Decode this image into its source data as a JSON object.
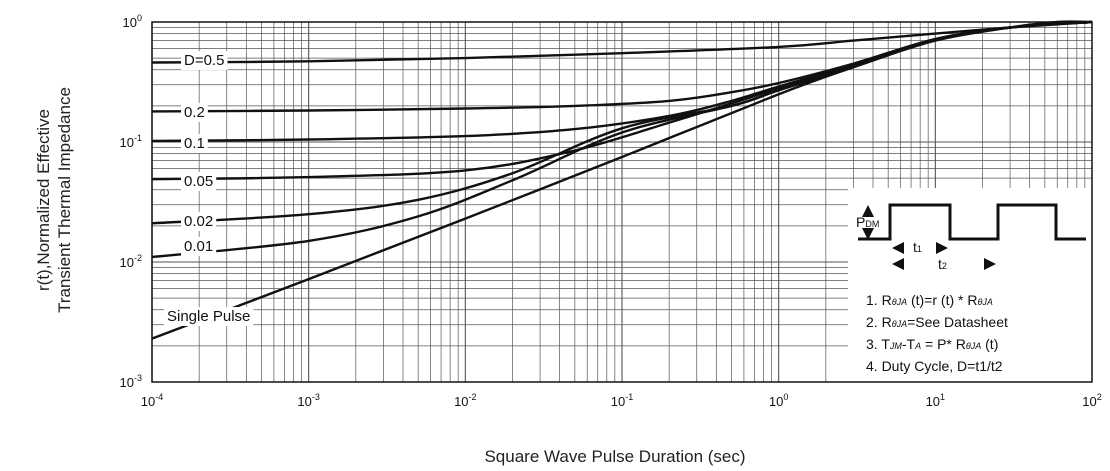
{
  "chart_data": {
    "type": "line",
    "x_scale": "log",
    "y_scale": "log",
    "xlim": [
      0.0001,
      100
    ],
    "ylim": [
      0.001,
      1
    ],
    "grid": true,
    "xlabel": "Square Wave Pulse Duration (sec)",
    "ylabel": [
      "r(t),Normalized Effective",
      "Transient Thermal Impedance"
    ],
    "x_ticks": [
      {
        "value": 0.0001,
        "base": "10",
        "exp": "-4"
      },
      {
        "value": 0.001,
        "base": "10",
        "exp": "-3"
      },
      {
        "value": 0.01,
        "base": "10",
        "exp": "-2"
      },
      {
        "value": 0.1,
        "base": "10",
        "exp": "-1"
      },
      {
        "value": 1,
        "base": "10",
        "exp": "0"
      },
      {
        "value": 10,
        "base": "10",
        "exp": "1"
      },
      {
        "value": 100,
        "base": "10",
        "exp": "2"
      }
    ],
    "y_ticks": [
      {
        "value": 0.001,
        "base": "10",
        "exp": "-3"
      },
      {
        "value": 0.01,
        "base": "10",
        "exp": "-2"
      },
      {
        "value": 0.1,
        "base": "10",
        "exp": "-1"
      },
      {
        "value": 1,
        "base": "10",
        "exp": "0"
      }
    ],
    "series": [
      {
        "name": "D=0.5",
        "x": [
          0.0001,
          0.001,
          0.01,
          0.1,
          1,
          3,
          10,
          30,
          100
        ],
        "y": [
          0.46,
          0.47,
          0.5,
          0.55,
          0.62,
          0.7,
          0.8,
          0.9,
          1.0
        ]
      },
      {
        "name": "0.2",
        "x": [
          0.0001,
          0.001,
          0.01,
          0.05,
          0.2,
          0.5,
          1,
          3,
          10,
          30,
          100
        ],
        "y": [
          0.18,
          0.183,
          0.19,
          0.2,
          0.22,
          0.26,
          0.31,
          0.45,
          0.72,
          0.9,
          1.0
        ]
      },
      {
        "name": "0.1",
        "x": [
          0.0001,
          0.001,
          0.01,
          0.05,
          0.2,
          0.5,
          1,
          3,
          10,
          30,
          100
        ],
        "y": [
          0.102,
          0.105,
          0.112,
          0.128,
          0.165,
          0.22,
          0.29,
          0.44,
          0.72,
          0.9,
          1.0
        ]
      },
      {
        "name": "0.05",
        "x": [
          0.0001,
          0.001,
          0.01,
          0.05,
          0.2,
          0.5,
          1,
          3,
          10,
          30,
          100
        ],
        "y": [
          0.049,
          0.051,
          0.058,
          0.085,
          0.145,
          0.21,
          0.28,
          0.43,
          0.71,
          0.9,
          1.0
        ]
      },
      {
        "name": "0.02",
        "x": [
          0.0001,
          0.001,
          0.005,
          0.02,
          0.1,
          0.5,
          1,
          3,
          10,
          30,
          100
        ],
        "y": [
          0.021,
          0.025,
          0.033,
          0.055,
          0.13,
          0.2,
          0.27,
          0.43,
          0.71,
          0.9,
          1.0
        ]
      },
      {
        "name": "0.01",
        "x": [
          0.0001,
          0.001,
          0.005,
          0.02,
          0.1,
          0.5,
          1,
          3,
          10,
          30,
          100
        ],
        "y": [
          0.011,
          0.015,
          0.024,
          0.048,
          0.12,
          0.2,
          0.27,
          0.42,
          0.71,
          0.9,
          1.0
        ]
      },
      {
        "name": "Single Pulse",
        "x": [
          0.0001,
          0.001,
          0.01,
          0.1,
          1,
          3,
          10,
          30,
          60,
          100
        ],
        "y": [
          0.0023,
          0.0072,
          0.023,
          0.075,
          0.25,
          0.42,
          0.7,
          0.9,
          1.0,
          1.0
        ]
      }
    ]
  },
  "inset": {
    "pdm": {
      "main": "P",
      "sub": "DM"
    },
    "t1": {
      "main": "t",
      "sub": "1"
    },
    "t2": {
      "main": "t",
      "sub": "2"
    },
    "notes": [
      {
        "parts": [
          [
            "1. R",
            ""
          ],
          [
            "θJA",
            "sub"
          ],
          [
            " (t)=r (t) * R",
            ""
          ],
          [
            "θJA",
            "sub"
          ]
        ]
      },
      {
        "parts": [
          [
            "2. R",
            ""
          ],
          [
            "θJA",
            "sub"
          ],
          [
            "=See Datasheet",
            ""
          ]
        ]
      },
      {
        "parts": [
          [
            "3. T",
            ""
          ],
          [
            "JM",
            "sub"
          ],
          [
            "-T",
            ""
          ],
          [
            "A",
            "sub"
          ],
          [
            " = P* R",
            ""
          ],
          [
            "θJA",
            "sub"
          ],
          [
            " (t)",
            ""
          ]
        ]
      },
      {
        "parts": [
          [
            "4. Duty Cycle, D=t1/t2",
            ""
          ]
        ]
      }
    ]
  },
  "colors": {
    "line": "#111111",
    "grid": "#555555",
    "background": "#ffffff"
  }
}
